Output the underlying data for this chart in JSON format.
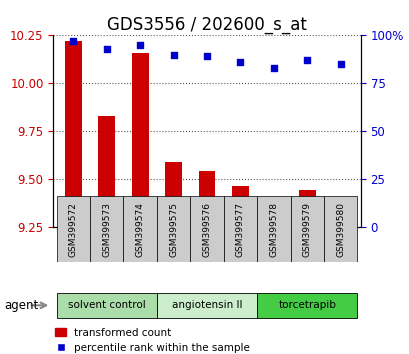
{
  "title": "GDS3556 / 202600_s_at",
  "samples": [
    "GSM399572",
    "GSM399573",
    "GSM399574",
    "GSM399575",
    "GSM399576",
    "GSM399577",
    "GSM399578",
    "GSM399579",
    "GSM399580"
  ],
  "bar_values": [
    10.22,
    9.83,
    10.16,
    9.59,
    9.54,
    9.46,
    9.31,
    9.44,
    9.25
  ],
  "scatter_values": [
    97,
    93,
    95,
    90,
    89,
    86,
    83,
    87,
    85
  ],
  "bar_bottom": 9.25,
  "ylim_left": [
    9.25,
    10.25
  ],
  "ylim_right": [
    0,
    100
  ],
  "yticks_left": [
    9.25,
    9.5,
    9.75,
    10.0,
    10.25
  ],
  "yticks_right": [
    0,
    25,
    50,
    75,
    100
  ],
  "yticklabels_right": [
    "0",
    "25",
    "50",
    "75",
    "100%"
  ],
  "bar_color": "#cc0000",
  "scatter_color": "#0000cc",
  "groups": [
    {
      "label": "solvent control",
      "indices": [
        0,
        1,
        2
      ],
      "color": "#aaddaa"
    },
    {
      "label": "angiotensin II",
      "indices": [
        3,
        4,
        5
      ],
      "color": "#cceecc"
    },
    {
      "label": "torcetrapib",
      "indices": [
        6,
        7,
        8
      ],
      "color": "#44cc44"
    }
  ],
  "agent_label": "agent",
  "legend_bar_label": "transformed count",
  "legend_scatter_label": "percentile rank within the sample",
  "grid_color": "#555555",
  "tick_label_color_left": "#cc0000",
  "tick_label_color_right": "#0000cc",
  "bar_width": 0.5,
  "sample_box_color": "#cccccc",
  "title_fontsize": 12
}
